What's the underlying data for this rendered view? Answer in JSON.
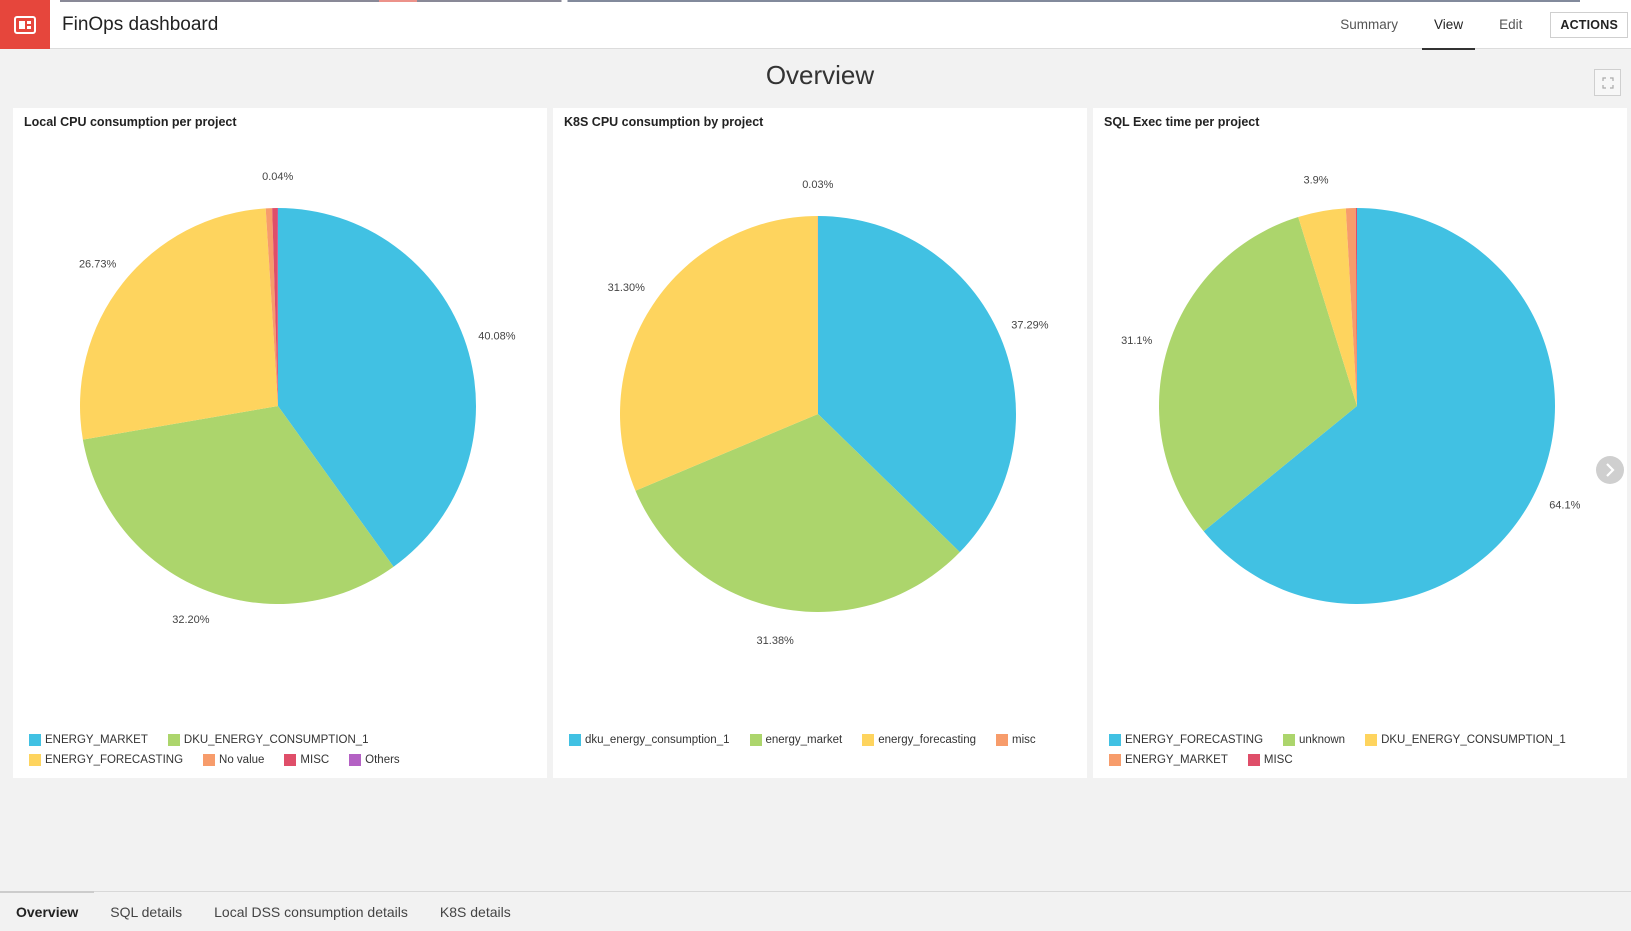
{
  "app": {
    "title": "FinOps dashboard"
  },
  "nav": {
    "items": [
      "Summary",
      "View",
      "Edit"
    ],
    "active": "View",
    "actions_label": "ACTIONS"
  },
  "page": {
    "title": "Overview"
  },
  "tiles": [
    {
      "title": "Local CPU consumption per project",
      "chart_data": {
        "type": "pie",
        "title": "Local CPU consumption per project",
        "slices": [
          {
            "label": "ENERGY_MARKET",
            "value": 40.08,
            "display": "40.08%",
            "color": "#41c1e3"
          },
          {
            "label": "DKU_ENERGY_CONSUMPTION_1",
            "value": 32.2,
            "display": "32.20%",
            "color": "#acd56c"
          },
          {
            "label": "ENERGY_FORECASTING",
            "value": 26.73,
            "display": "26.73%",
            "color": "#fed45e"
          },
          {
            "label": "No value",
            "value": 0.52,
            "display": "",
            "color": "#f79c6b"
          },
          {
            "label": "MISC",
            "value": 0.43,
            "display": "",
            "color": "#df4e69"
          },
          {
            "label": "Others",
            "value": 0.04,
            "display": "0.04%",
            "color": "#b461c4"
          }
        ],
        "legend_position": "bottom"
      }
    },
    {
      "title": "K8S CPU consumption by project",
      "chart_data": {
        "type": "pie",
        "title": "K8S CPU consumption by project",
        "slices": [
          {
            "label": "dku_energy_consumption_1",
            "value": 37.29,
            "display": "37.29%",
            "color": "#41c1e3"
          },
          {
            "label": "energy_market",
            "value": 31.38,
            "display": "31.38%",
            "color": "#acd56c"
          },
          {
            "label": "energy_forecasting",
            "value": 31.3,
            "display": "31.30%",
            "color": "#fed45e"
          },
          {
            "label": "misc",
            "value": 0.03,
            "display": "0.03%",
            "color": "#f79c6b"
          }
        ],
        "legend_position": "bottom"
      }
    },
    {
      "title": "SQL Exec time per project",
      "chart_data": {
        "type": "pie",
        "title": "SQL Exec time per project",
        "slices": [
          {
            "label": "ENERGY_FORECASTING",
            "value": 64.1,
            "display": "64.1%",
            "color": "#41c1e3"
          },
          {
            "label": "unknown",
            "value": 31.1,
            "display": "31.1%",
            "color": "#acd56c"
          },
          {
            "label": "DKU_ENERGY_CONSUMPTION_1",
            "value": 3.9,
            "display": "3.9%",
            "color": "#fed45e"
          },
          {
            "label": "ENERGY_MARKET",
            "value": 0.8,
            "display": "",
            "color": "#f79c6b"
          },
          {
            "label": "MISC",
            "value": 0.1,
            "display": "",
            "color": "#df4e69"
          }
        ],
        "legend_position": "bottom"
      }
    }
  ],
  "bottom_tabs": {
    "items": [
      "Overview",
      "SQL details",
      "Local DSS consumption details",
      "K8S details"
    ],
    "active": "Overview"
  },
  "icons": {
    "logo": "dashboard-icon",
    "fullscreen": "expand-icon",
    "next": "chevron-right-icon"
  }
}
